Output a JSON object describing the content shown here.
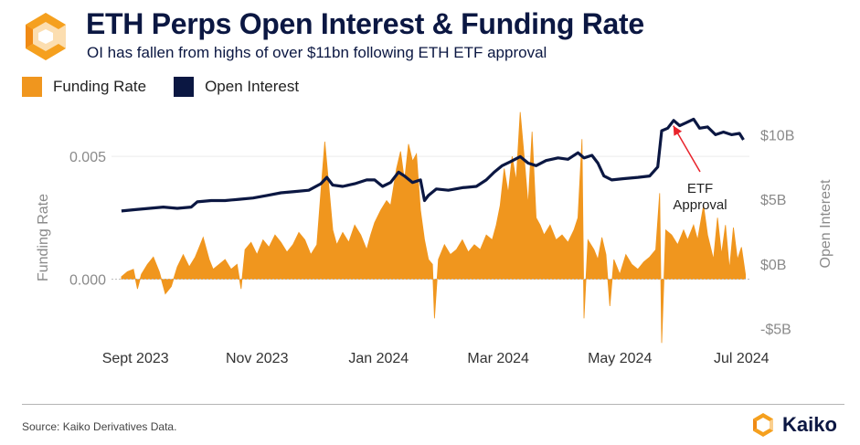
{
  "header": {
    "title": "ETH Perps Open Interest & Funding Rate",
    "subtitle": "OI has fallen from highs of over $11bn following ETH ETF approval"
  },
  "footer": {
    "source": "Source: Kaiko Derivatives Data.",
    "brand": "Kaiko"
  },
  "colors": {
    "funding": "#f0961e",
    "oi": "#0b1742",
    "logo_orange": "#f5a01e",
    "annotation": "#e8232b"
  },
  "chart_data": {
    "type": "area",
    "x_range": [
      "2023-08-20",
      "2024-07-05"
    ],
    "x_ticks": [
      {
        "date": "2023-09-01",
        "label": "Sept 2023"
      },
      {
        "date": "2023-11-01",
        "label": "Nov 2023"
      },
      {
        "date": "2024-01-01",
        "label": "Jan 2024"
      },
      {
        "date": "2024-03-01",
        "label": "Mar 2024"
      },
      {
        "date": "2024-05-01",
        "label": "May 2024"
      },
      {
        "date": "2024-07-01",
        "label": "Jul 2024"
      }
    ],
    "y_left": {
      "label": "Funding Rate",
      "range": [
        -0.0027,
        0.0072
      ],
      "ticks": [
        {
          "value": 0.005,
          "label": "0.005"
        },
        {
          "value": 0.0,
          "label": "0.000"
        }
      ]
    },
    "y_right": {
      "label": "Open Interest",
      "unit": "$bn",
      "range": [
        -6.3,
        12.5
      ],
      "ticks": [
        {
          "value": 10,
          "label": "$10B"
        },
        {
          "value": 5,
          "label": "$5B"
        },
        {
          "value": 0,
          "label": "$0B"
        },
        {
          "value": -5,
          "label": "-$5B"
        }
      ]
    },
    "legend": {
      "placement": "top-left",
      "entries": [
        "Funding Rate",
        "Open Interest"
      ]
    },
    "series": [
      {
        "name": "Funding Rate",
        "axis": "left",
        "kind": "area",
        "points": [
          [
            "2023-08-25",
            0.0001
          ],
          [
            "2023-08-28",
            0.0003
          ],
          [
            "2023-08-31",
            0.0004
          ],
          [
            "2023-09-02",
            -0.0004
          ],
          [
            "2023-09-04",
            0.0002
          ],
          [
            "2023-09-07",
            0.0006
          ],
          [
            "2023-09-10",
            0.0009
          ],
          [
            "2023-09-13",
            0.0003
          ],
          [
            "2023-09-16",
            -0.0006
          ],
          [
            "2023-09-19",
            -0.0003
          ],
          [
            "2023-09-22",
            0.0005
          ],
          [
            "2023-09-25",
            0.001
          ],
          [
            "2023-09-28",
            0.0005
          ],
          [
            "2023-10-01",
            0.0009
          ],
          [
            "2023-10-03",
            0.0013
          ],
          [
            "2023-10-05",
            0.0017
          ],
          [
            "2023-10-08",
            0.0008
          ],
          [
            "2023-10-10",
            0.0004
          ],
          [
            "2023-10-13",
            0.0006
          ],
          [
            "2023-10-16",
            0.0008
          ],
          [
            "2023-10-19",
            0.0004
          ],
          [
            "2023-10-22",
            0.0006
          ],
          [
            "2023-10-24",
            -0.0004
          ],
          [
            "2023-10-26",
            0.0012
          ],
          [
            "2023-10-29",
            0.0015
          ],
          [
            "2023-11-01",
            0.001
          ],
          [
            "2023-11-04",
            0.0016
          ],
          [
            "2023-11-07",
            0.0013
          ],
          [
            "2023-11-10",
            0.0018
          ],
          [
            "2023-11-13",
            0.0015
          ],
          [
            "2023-11-16",
            0.0011
          ],
          [
            "2023-11-19",
            0.0014
          ],
          [
            "2023-11-22",
            0.0019
          ],
          [
            "2023-11-25",
            0.0016
          ],
          [
            "2023-11-28",
            0.001
          ],
          [
            "2023-12-01",
            0.0014
          ],
          [
            "2023-12-03",
            0.0035
          ],
          [
            "2023-12-05",
            0.0056
          ],
          [
            "2023-12-07",
            0.0038
          ],
          [
            "2023-12-09",
            0.002
          ],
          [
            "2023-12-11",
            0.0014
          ],
          [
            "2023-12-14",
            0.0019
          ],
          [
            "2023-12-17",
            0.0015
          ],
          [
            "2023-12-20",
            0.0022
          ],
          [
            "2023-12-23",
            0.0018
          ],
          [
            "2023-12-26",
            0.0012
          ],
          [
            "2023-12-28",
            0.0018
          ],
          [
            "2023-12-30",
            0.0023
          ],
          [
            "2024-01-02",
            0.0028
          ],
          [
            "2024-01-05",
            0.0032
          ],
          [
            "2024-01-07",
            0.003
          ],
          [
            "2024-01-10",
            0.0045
          ],
          [
            "2024-01-12",
            0.0052
          ],
          [
            "2024-01-14",
            0.004
          ],
          [
            "2024-01-16",
            0.0055
          ],
          [
            "2024-01-18",
            0.0048
          ],
          [
            "2024-01-20",
            0.0051
          ],
          [
            "2024-01-22",
            0.0028
          ],
          [
            "2024-01-24",
            0.0016
          ],
          [
            "2024-01-26",
            0.0008
          ],
          [
            "2024-01-28",
            0.0006
          ],
          [
            "2024-01-29",
            -0.0016
          ],
          [
            "2024-01-31",
            0.0008
          ],
          [
            "2024-02-03",
            0.0014
          ],
          [
            "2024-02-06",
            0.001
          ],
          [
            "2024-02-09",
            0.0012
          ],
          [
            "2024-02-12",
            0.0016
          ],
          [
            "2024-02-15",
            0.0011
          ],
          [
            "2024-02-18",
            0.0014
          ],
          [
            "2024-02-21",
            0.0012
          ],
          [
            "2024-02-24",
            0.0018
          ],
          [
            "2024-02-27",
            0.0016
          ],
          [
            "2024-02-29",
            0.0022
          ],
          [
            "2024-03-02",
            0.003
          ],
          [
            "2024-03-04",
            0.0045
          ],
          [
            "2024-03-06",
            0.0035
          ],
          [
            "2024-03-08",
            0.005
          ],
          [
            "2024-03-10",
            0.004
          ],
          [
            "2024-03-12",
            0.0068
          ],
          [
            "2024-03-14",
            0.005
          ],
          [
            "2024-03-16",
            0.003
          ],
          [
            "2024-03-18",
            0.006
          ],
          [
            "2024-03-20",
            0.0025
          ],
          [
            "2024-03-22",
            0.0022
          ],
          [
            "2024-03-24",
            0.0018
          ],
          [
            "2024-03-27",
            0.0022
          ],
          [
            "2024-03-30",
            0.0016
          ],
          [
            "2024-04-02",
            0.0018
          ],
          [
            "2024-04-05",
            0.0015
          ],
          [
            "2024-04-08",
            0.002
          ],
          [
            "2024-04-10",
            0.0025
          ],
          [
            "2024-04-12",
            0.0057
          ],
          [
            "2024-04-13",
            -0.0016
          ],
          [
            "2024-04-15",
            0.0016
          ],
          [
            "2024-04-18",
            0.0012
          ],
          [
            "2024-04-20",
            0.0008
          ],
          [
            "2024-04-22",
            0.0017
          ],
          [
            "2024-04-24",
            0.001
          ],
          [
            "2024-04-26",
            -0.0011
          ],
          [
            "2024-04-28",
            0.0008
          ],
          [
            "2024-05-01",
            0.0002
          ],
          [
            "2024-05-04",
            0.001
          ],
          [
            "2024-05-07",
            0.0006
          ],
          [
            "2024-05-10",
            0.0004
          ],
          [
            "2024-05-13",
            0.0007
          ],
          [
            "2024-05-16",
            0.0009
          ],
          [
            "2024-05-19",
            0.0012
          ],
          [
            "2024-05-21",
            0.0035
          ],
          [
            "2024-05-22",
            -0.0026
          ],
          [
            "2024-05-24",
            0.002
          ],
          [
            "2024-05-27",
            0.0018
          ],
          [
            "2024-05-30",
            0.0014
          ],
          [
            "2024-06-02",
            0.002
          ],
          [
            "2024-06-04",
            0.0016
          ],
          [
            "2024-06-07",
            0.0022
          ],
          [
            "2024-06-09",
            0.0016
          ],
          [
            "2024-06-12",
            0.003
          ],
          [
            "2024-06-14",
            0.0018
          ],
          [
            "2024-06-17",
            0.0008
          ],
          [
            "2024-06-19",
            0.0025
          ],
          [
            "2024-06-21",
            0.001
          ],
          [
            "2024-06-23",
            0.0022
          ],
          [
            "2024-06-25",
            0.0004
          ],
          [
            "2024-06-27",
            0.0021
          ],
          [
            "2024-06-29",
            0.0008
          ],
          [
            "2024-07-01",
            0.0013
          ],
          [
            "2024-07-03",
            0.0002
          ]
        ]
      },
      {
        "name": "Open Interest",
        "axis": "right",
        "kind": "line",
        "points": [
          [
            "2023-08-25",
            4.1
          ],
          [
            "2023-09-01",
            4.2
          ],
          [
            "2023-09-08",
            4.3
          ],
          [
            "2023-09-15",
            4.4
          ],
          [
            "2023-09-22",
            4.3
          ],
          [
            "2023-09-29",
            4.4
          ],
          [
            "2023-10-02",
            4.8
          ],
          [
            "2023-10-09",
            4.9
          ],
          [
            "2023-10-16",
            4.9
          ],
          [
            "2023-10-23",
            5.0
          ],
          [
            "2023-10-30",
            5.1
          ],
          [
            "2023-11-06",
            5.3
          ],
          [
            "2023-11-13",
            5.5
          ],
          [
            "2023-11-20",
            5.6
          ],
          [
            "2023-11-27",
            5.7
          ],
          [
            "2023-12-03",
            6.2
          ],
          [
            "2023-12-06",
            6.7
          ],
          [
            "2023-12-09",
            6.1
          ],
          [
            "2023-12-14",
            6.0
          ],
          [
            "2023-12-20",
            6.2
          ],
          [
            "2023-12-26",
            6.5
          ],
          [
            "2023-12-30",
            6.5
          ],
          [
            "2024-01-03",
            6.0
          ],
          [
            "2024-01-07",
            6.3
          ],
          [
            "2024-01-11",
            7.1
          ],
          [
            "2024-01-14",
            6.8
          ],
          [
            "2024-01-18",
            6.3
          ],
          [
            "2024-01-22",
            6.5
          ],
          [
            "2024-01-24",
            4.9
          ],
          [
            "2024-01-26",
            5.3
          ],
          [
            "2024-01-30",
            5.8
          ],
          [
            "2024-02-05",
            5.7
          ],
          [
            "2024-02-12",
            5.9
          ],
          [
            "2024-02-19",
            6.0
          ],
          [
            "2024-02-24",
            6.5
          ],
          [
            "2024-02-28",
            7.1
          ],
          [
            "2024-03-03",
            7.6
          ],
          [
            "2024-03-07",
            7.9
          ],
          [
            "2024-03-12",
            8.3
          ],
          [
            "2024-03-16",
            7.8
          ],
          [
            "2024-03-20",
            7.6
          ],
          [
            "2024-03-25",
            8.0
          ],
          [
            "2024-03-31",
            8.2
          ],
          [
            "2024-04-05",
            8.1
          ],
          [
            "2024-04-10",
            8.6
          ],
          [
            "2024-04-13",
            8.2
          ],
          [
            "2024-04-17",
            8.4
          ],
          [
            "2024-04-20",
            7.8
          ],
          [
            "2024-04-23",
            6.8
          ],
          [
            "2024-04-27",
            6.5
          ],
          [
            "2024-05-03",
            6.6
          ],
          [
            "2024-05-10",
            6.7
          ],
          [
            "2024-05-16",
            6.8
          ],
          [
            "2024-05-20",
            7.5
          ],
          [
            "2024-05-22",
            10.3
          ],
          [
            "2024-05-25",
            10.5
          ],
          [
            "2024-05-28",
            11.1
          ],
          [
            "2024-05-31",
            10.7
          ],
          [
            "2024-06-03",
            10.9
          ],
          [
            "2024-06-07",
            11.2
          ],
          [
            "2024-06-10",
            10.5
          ],
          [
            "2024-06-14",
            10.6
          ],
          [
            "2024-06-18",
            10.0
          ],
          [
            "2024-06-22",
            10.2
          ],
          [
            "2024-06-26",
            10.0
          ],
          [
            "2024-06-30",
            10.1
          ],
          [
            "2024-07-02",
            9.6
          ]
        ]
      }
    ],
    "annotations": [
      {
        "text_lines": [
          "ETF",
          "Approval"
        ],
        "target_date": "2024-05-26",
        "target_oi": 10.9
      }
    ]
  }
}
